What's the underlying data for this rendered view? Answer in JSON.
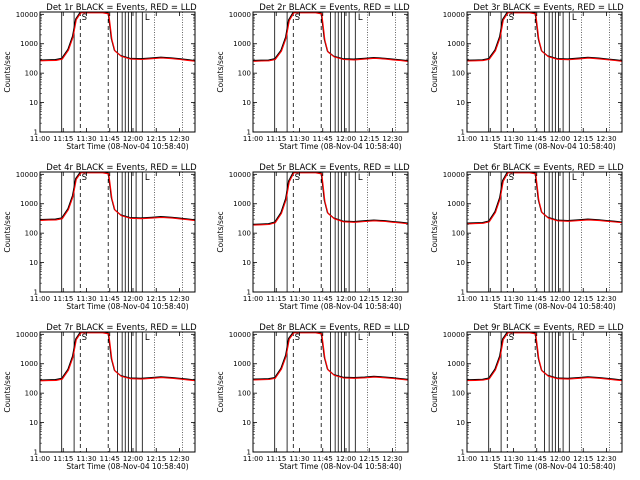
{
  "figure": {
    "xlabel": "Start Time (08-Nov-04 10:58:40)",
    "ylabel": "Counts/sec",
    "x_ticks": [
      "11:00",
      "11:15",
      "11:30",
      "11:45",
      "12:00",
      "12:15",
      "12:30"
    ],
    "y_ticks": [
      "1",
      "10",
      "100",
      "1000",
      "10000"
    ],
    "colors": {
      "events": "#000000",
      "lld": "#ff0000",
      "background": "#ffffff"
    }
  },
  "chart_data": [
    {
      "type": "line",
      "title": "Det 1r BLACK = Events, RED = LLD",
      "xlabel": "Start Time (08-Nov-04 10:58:40)",
      "ylabel": "Counts/sec",
      "xlim": [
        "11:00",
        "12:40"
      ],
      "ylim": [
        1,
        12000
      ],
      "yscale": "log",
      "series": [
        {
          "name": "Events",
          "color": "#000000"
        },
        {
          "name": "LLD",
          "color": "#ff0000"
        }
      ],
      "x": [
        "11:00",
        "11:05",
        "11:10",
        "11:14",
        "11:18",
        "11:21",
        "11:23",
        "11:26",
        "11:30",
        "11:35",
        "11:40",
        "11:44",
        "11:46",
        "11:48",
        "11:52",
        "11:58",
        "12:05",
        "12:12",
        "12:18",
        "12:25",
        "12:30",
        "12:35",
        "12:40"
      ],
      "y": [
        280,
        285,
        290,
        320,
        650,
        1800,
        7000,
        12000,
        12000,
        12000,
        12000,
        11000,
        1500,
        600,
        400,
        320,
        310,
        330,
        350,
        330,
        310,
        290,
        270
      ],
      "annotations": [
        "S",
        "L"
      ],
      "events": {
        "solid": [
          "11:14",
          "11:22",
          "11:50",
          "11:53",
          "11:55",
          "11:57",
          "11:59",
          "12:02",
          "12:06"
        ],
        "dashed": [
          "11:26",
          "11:44"
        ],
        "dotted": [
          "12:14",
          "12:32"
        ]
      }
    },
    {
      "type": "line",
      "title": "Det 2r BLACK = Events, RED = LLD",
      "xlabel": "Start Time (08-Nov-04 10:58:40)",
      "ylabel": "Counts/sec",
      "xlim": [
        "11:00",
        "12:40"
      ],
      "ylim": [
        1,
        12000
      ],
      "yscale": "log",
      "series": [
        {
          "name": "Events",
          "color": "#000000"
        },
        {
          "name": "LLD",
          "color": "#ff0000"
        }
      ],
      "x": [
        "11:00",
        "11:05",
        "11:10",
        "11:14",
        "11:18",
        "11:21",
        "11:23",
        "11:26",
        "11:30",
        "11:35",
        "11:40",
        "11:44",
        "11:46",
        "11:48",
        "11:52",
        "11:58",
        "12:05",
        "12:12",
        "12:18",
        "12:25",
        "12:30",
        "12:35",
        "12:40"
      ],
      "y": [
        270,
        275,
        280,
        310,
        600,
        1700,
        6500,
        12000,
        12000,
        12000,
        12000,
        11000,
        1400,
        560,
        380,
        310,
        300,
        320,
        340,
        320,
        300,
        285,
        265
      ],
      "annotations": [
        "S",
        "L"
      ],
      "events": {
        "solid": [
          "11:14",
          "11:22",
          "11:50",
          "11:53",
          "11:55",
          "11:57",
          "11:59",
          "12:02",
          "12:06"
        ],
        "dashed": [
          "11:26",
          "11:44"
        ],
        "dotted": [
          "12:14",
          "12:32"
        ]
      }
    },
    {
      "type": "line",
      "title": "Det 3r BLACK = Events, RED = LLD",
      "xlabel": "Start Time (08-Nov-04 10:58:40)",
      "ylabel": "Counts/sec",
      "xlim": [
        "11:00",
        "12:40"
      ],
      "ylim": [
        1,
        12000
      ],
      "yscale": "log",
      "series": [
        {
          "name": "Events",
          "color": "#000000"
        },
        {
          "name": "LLD",
          "color": "#ff0000"
        }
      ],
      "x": [
        "11:00",
        "11:05",
        "11:10",
        "11:14",
        "11:18",
        "11:21",
        "11:23",
        "11:26",
        "11:30",
        "11:35",
        "11:40",
        "11:44",
        "11:46",
        "11:48",
        "11:52",
        "11:58",
        "12:05",
        "12:12",
        "12:18",
        "12:25",
        "12:30",
        "12:35",
        "12:40"
      ],
      "y": [
        275,
        280,
        285,
        315,
        620,
        1750,
        6800,
        12000,
        12000,
        12000,
        12000,
        11000,
        1450,
        580,
        390,
        315,
        305,
        325,
        345,
        325,
        305,
        288,
        268
      ],
      "annotations": [
        "S",
        "L"
      ],
      "events": {
        "solid": [
          "11:14",
          "11:22",
          "11:50",
          "11:53",
          "11:55",
          "11:57",
          "11:59",
          "12:02",
          "12:06"
        ],
        "dashed": [
          "11:26",
          "11:44"
        ],
        "dotted": [
          "12:14",
          "12:32"
        ]
      }
    },
    {
      "type": "line",
      "title": "Det 4r BLACK = Events, RED = LLD",
      "xlabel": "Start Time (08-Nov-04 10:58:40)",
      "ylabel": "Counts/sec",
      "xlim": [
        "11:00",
        "12:40"
      ],
      "ylim": [
        1,
        12000
      ],
      "yscale": "log",
      "series": [
        {
          "name": "Events",
          "color": "#000000"
        },
        {
          "name": "LLD",
          "color": "#ff0000"
        }
      ],
      "x": [
        "11:00",
        "11:05",
        "11:10",
        "11:14",
        "11:18",
        "11:21",
        "11:23",
        "11:26",
        "11:30",
        "11:35",
        "11:40",
        "11:44",
        "11:46",
        "11:48",
        "11:52",
        "11:58",
        "12:05",
        "12:12",
        "12:18",
        "12:25",
        "12:30",
        "12:35",
        "12:40"
      ],
      "y": [
        290,
        295,
        300,
        330,
        680,
        1900,
        7200,
        12000,
        12000,
        12000,
        12000,
        11000,
        1600,
        640,
        420,
        340,
        330,
        345,
        365,
        345,
        325,
        305,
        285
      ],
      "annotations": [
        "S",
        "L"
      ],
      "events": {
        "solid": [
          "11:14",
          "11:22",
          "11:50",
          "11:53",
          "11:55",
          "11:57",
          "11:59",
          "12:02",
          "12:06"
        ],
        "dashed": [
          "11:26",
          "11:44"
        ],
        "dotted": [
          "12:14",
          "12:32"
        ]
      }
    },
    {
      "type": "line",
      "title": "Det 5r BLACK = Events, RED = LLD",
      "xlabel": "Start Time (08-Nov-04 10:58:40)",
      "ylabel": "Counts/sec",
      "xlim": [
        "11:00",
        "12:40"
      ],
      "ylim": [
        1,
        12000
      ],
      "yscale": "log",
      "series": [
        {
          "name": "Events",
          "color": "#000000"
        },
        {
          "name": "LLD",
          "color": "#ff0000"
        }
      ],
      "x": [
        "11:00",
        "11:05",
        "11:10",
        "11:14",
        "11:18",
        "11:21",
        "11:23",
        "11:26",
        "11:30",
        "11:35",
        "11:40",
        "11:44",
        "11:46",
        "11:48",
        "11:52",
        "11:58",
        "12:05",
        "12:12",
        "12:18",
        "12:25",
        "12:30",
        "12:35",
        "12:40"
      ],
      "y": [
        200,
        205,
        210,
        240,
        500,
        1500,
        6000,
        12000,
        12000,
        12000,
        12000,
        11000,
        1300,
        500,
        330,
        260,
        250,
        265,
        280,
        265,
        250,
        235,
        220
      ],
      "annotations": [
        "S",
        "L"
      ],
      "events": {
        "solid": [
          "11:14",
          "11:22",
          "11:50",
          "11:53",
          "11:55",
          "11:57",
          "11:59",
          "12:02",
          "12:06"
        ],
        "dashed": [
          "11:26",
          "11:44"
        ],
        "dotted": [
          "12:14",
          "12:32"
        ]
      }
    },
    {
      "type": "line",
      "title": "Det 6r BLACK = Events, RED = LLD",
      "xlabel": "Start Time (08-Nov-04 10:58:40)",
      "ylabel": "Counts/sec",
      "xlim": [
        "11:00",
        "12:40"
      ],
      "ylim": [
        1,
        12000
      ],
      "yscale": "log",
      "series": [
        {
          "name": "Events",
          "color": "#000000"
        },
        {
          "name": "LLD",
          "color": "#ff0000"
        }
      ],
      "x": [
        "11:00",
        "11:05",
        "11:10",
        "11:14",
        "11:18",
        "11:21",
        "11:23",
        "11:26",
        "11:30",
        "11:35",
        "11:40",
        "11:44",
        "11:46",
        "11:48",
        "11:52",
        "11:58",
        "12:05",
        "12:12",
        "12:18",
        "12:25",
        "12:30",
        "12:35",
        "12:40"
      ],
      "y": [
        220,
        225,
        230,
        260,
        540,
        1600,
        6200,
        12000,
        12000,
        12000,
        12000,
        11000,
        1350,
        530,
        350,
        280,
        270,
        285,
        300,
        285,
        270,
        255,
        240
      ],
      "annotations": [
        "S",
        "L"
      ],
      "events": {
        "solid": [
          "11:14",
          "11:22",
          "11:50",
          "11:53",
          "11:55",
          "11:57",
          "11:59",
          "12:02",
          "12:06"
        ],
        "dashed": [
          "11:26",
          "11:44"
        ],
        "dotted": [
          "12:14",
          "12:32"
        ]
      }
    },
    {
      "type": "line",
      "title": "Det 7r BLACK = Events, RED = LLD",
      "xlabel": "Start Time (08-Nov-04 10:58:40)",
      "ylabel": "Counts/sec",
      "xlim": [
        "11:00",
        "12:40"
      ],
      "ylim": [
        1,
        12000
      ],
      "yscale": "log",
      "series": [
        {
          "name": "Events",
          "color": "#000000"
        },
        {
          "name": "LLD",
          "color": "#ff0000"
        }
      ],
      "x": [
        "11:00",
        "11:05",
        "11:10",
        "11:14",
        "11:18",
        "11:21",
        "11:23",
        "11:26",
        "11:30",
        "11:35",
        "11:40",
        "11:44",
        "11:46",
        "11:48",
        "11:52",
        "11:58",
        "12:05",
        "12:12",
        "12:18",
        "12:25",
        "12:30",
        "12:35",
        "12:40"
      ],
      "y": [
        280,
        285,
        290,
        320,
        650,
        1800,
        7000,
        12000,
        12000,
        12000,
        12000,
        11000,
        1500,
        600,
        400,
        330,
        320,
        340,
        360,
        340,
        320,
        300,
        280
      ],
      "annotations": [
        "S",
        "L"
      ],
      "events": {
        "solid": [
          "11:14",
          "11:22",
          "11:50",
          "11:53",
          "11:55",
          "11:57",
          "11:59",
          "12:02",
          "12:06"
        ],
        "dashed": [
          "11:26",
          "11:44"
        ],
        "dotted": [
          "12:14",
          "12:32"
        ]
      }
    },
    {
      "type": "line",
      "title": "Det 8r BLACK = Events, RED = LLD",
      "xlabel": "Start Time (08-Nov-04 10:58:40)",
      "ylabel": "Counts/sec",
      "xlim": [
        "11:00",
        "12:40"
      ],
      "ylim": [
        1,
        12000
      ],
      "yscale": "log",
      "series": [
        {
          "name": "Events",
          "color": "#000000"
        },
        {
          "name": "LLD",
          "color": "#ff0000"
        }
      ],
      "x": [
        "11:00",
        "11:05",
        "11:10",
        "11:14",
        "11:18",
        "11:21",
        "11:23",
        "11:26",
        "11:30",
        "11:35",
        "11:40",
        "11:44",
        "11:46",
        "11:48",
        "11:52",
        "11:58",
        "12:05",
        "12:12",
        "12:18",
        "12:25",
        "12:30",
        "12:35",
        "12:40"
      ],
      "y": [
        300,
        305,
        310,
        340,
        700,
        1950,
        7300,
        12000,
        12000,
        12000,
        12000,
        11000,
        1650,
        660,
        430,
        350,
        340,
        355,
        375,
        355,
        335,
        315,
        295
      ],
      "annotations": [
        "S",
        "L"
      ],
      "events": {
        "solid": [
          "11:14",
          "11:22",
          "11:50",
          "11:53",
          "11:55",
          "11:57",
          "11:59",
          "12:02",
          "12:06"
        ],
        "dashed": [
          "11:26",
          "11:44"
        ],
        "dotted": [
          "12:14",
          "12:32"
        ]
      }
    },
    {
      "type": "line",
      "title": "Det 9r BLACK = Events, RED = LLD",
      "xlabel": "Start Time (08-Nov-04 10:58:40)",
      "ylabel": "Counts/sec",
      "xlim": [
        "11:00",
        "12:40"
      ],
      "ylim": [
        1,
        12000
      ],
      "yscale": "log",
      "series": [
        {
          "name": "Events",
          "color": "#000000"
        },
        {
          "name": "LLD",
          "color": "#ff0000"
        }
      ],
      "x": [
        "11:00",
        "11:05",
        "11:10",
        "11:14",
        "11:18",
        "11:21",
        "11:23",
        "11:26",
        "11:30",
        "11:35",
        "11:40",
        "11:44",
        "11:46",
        "11:48",
        "11:52",
        "11:58",
        "12:05",
        "12:12",
        "12:18",
        "12:25",
        "12:30",
        "12:35",
        "12:40"
      ],
      "y": [
        285,
        290,
        295,
        325,
        660,
        1820,
        7050,
        12000,
        12000,
        12000,
        12000,
        11000,
        1520,
        610,
        405,
        330,
        320,
        340,
        360,
        340,
        320,
        300,
        280
      ],
      "annotations": [
        "S",
        "L"
      ],
      "events": {
        "solid": [
          "11:14",
          "11:22",
          "11:50",
          "11:53",
          "11:55",
          "11:57",
          "11:59",
          "12:02",
          "12:06"
        ],
        "dashed": [
          "11:26",
          "11:44"
        ],
        "dotted": [
          "12:14",
          "12:32"
        ]
      }
    }
  ]
}
